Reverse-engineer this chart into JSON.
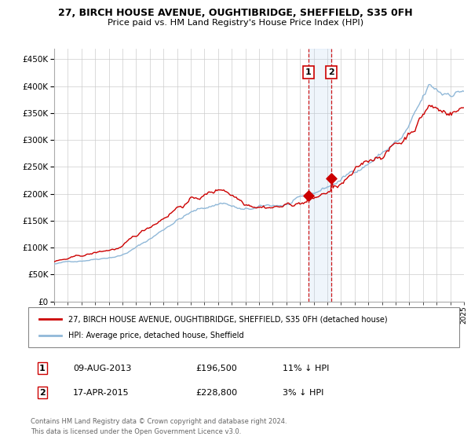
{
  "title_line1": "27, BIRCH HOUSE AVENUE, OUGHTIBRIDGE, SHEFFIELD, S35 0FH",
  "title_line2": "Price paid vs. HM Land Registry's House Price Index (HPI)",
  "legend_line1": "27, BIRCH HOUSE AVENUE, OUGHTIBRIDGE, SHEFFIELD, S35 0FH (detached house)",
  "legend_line2": "HPI: Average price, detached house, Sheffield",
  "transaction1_date": "09-AUG-2013",
  "transaction1_price": 196500,
  "transaction1_hpi_text": "11% ↓ HPI",
  "transaction2_date": "17-APR-2015",
  "transaction2_price": 228800,
  "transaction2_hpi_text": "3% ↓ HPI",
  "footer_line1": "Contains HM Land Registry data © Crown copyright and database right 2024.",
  "footer_line2": "This data is licensed under the Open Government Licence v3.0.",
  "hpi_color": "#90b8d8",
  "property_color": "#cc0000",
  "highlight_color": "#ddeeff",
  "ylim": [
    0,
    470000
  ],
  "ytick_values": [
    0,
    50000,
    100000,
    150000,
    200000,
    250000,
    300000,
    350000,
    400000,
    450000
  ],
  "transaction1_x": 2013.6,
  "transaction2_x": 2015.3,
  "xstart": 1995,
  "xend": 2025
}
